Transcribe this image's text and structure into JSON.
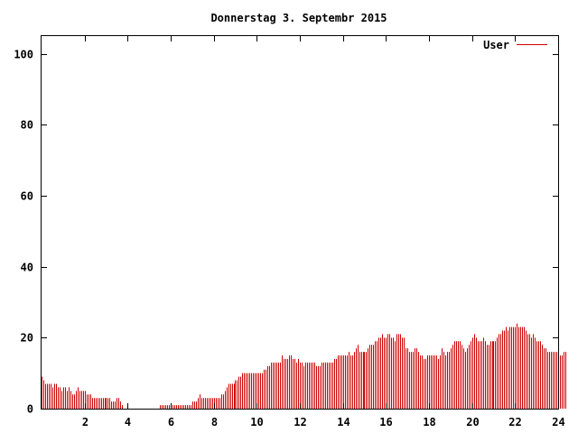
{
  "chart_data": {
    "type": "bar",
    "title": "Donnerstag 3. Septembr 2015",
    "xlabel": "",
    "ylabel": "",
    "xlim": [
      0,
      24
    ],
    "ylim": [
      0,
      105
    ],
    "x_ticks": [
      "2",
      "4",
      "6",
      "8",
      "10",
      "12",
      "14",
      "16",
      "18",
      "20",
      "22",
      "24"
    ],
    "y_ticks": [
      "0",
      "20",
      "40",
      "60",
      "80",
      "100"
    ],
    "x_tick_values": [
      2,
      4,
      6,
      8,
      10,
      12,
      14,
      16,
      18,
      20,
      22,
      24
    ],
    "y_tick_values": [
      0,
      20,
      40,
      60,
      80,
      100
    ],
    "grid": false,
    "legend_position": "top-right",
    "bar_color": "#cc0000",
    "series": [
      {
        "name": "User",
        "x_start": 0,
        "x_step": 0.0833333,
        "values": [
          9,
          8,
          7,
          7,
          7,
          7,
          6,
          7,
          7,
          6,
          6,
          5,
          6,
          6,
          5,
          6,
          5,
          4,
          4,
          5,
          6,
          5,
          5,
          5,
          5,
          4,
          4,
          4,
          3,
          3,
          3,
          3,
          3,
          3,
          3,
          3,
          3,
          3,
          3,
          2,
          2,
          2,
          3,
          3,
          2,
          1,
          0,
          0,
          1,
          0,
          0,
          0,
          0,
          0,
          0,
          0,
          0,
          0,
          0,
          0,
          0,
          0,
          0,
          0,
          0,
          0,
          1,
          1,
          1,
          1,
          1,
          1,
          1,
          1,
          1,
          1,
          1,
          1,
          1,
          1,
          1,
          1,
          1,
          1,
          2,
          2,
          2,
          3,
          4,
          3,
          3,
          3,
          3,
          3,
          3,
          3,
          3,
          3,
          3,
          3,
          4,
          4,
          5,
          6,
          7,
          7,
          7,
          7,
          8,
          8,
          9,
          9,
          10,
          10,
          10,
          10,
          10,
          10,
          10,
          10,
          10,
          10,
          10,
          10,
          11,
          11,
          12,
          12,
          13,
          13,
          13,
          13,
          13,
          13,
          15,
          14,
          14,
          14,
          15,
          15,
          14,
          14,
          13,
          14,
          13,
          13,
          12,
          13,
          13,
          13,
          13,
          13,
          13,
          12,
          12,
          12,
          13,
          13,
          13,
          13,
          13,
          13,
          13,
          14,
          14,
          15,
          15,
          15,
          15,
          15,
          15,
          16,
          15,
          15,
          16,
          17,
          18,
          16,
          16,
          16,
          16,
          16,
          17,
          18,
          18,
          18,
          19,
          19,
          20,
          20,
          21,
          20,
          20,
          21,
          21,
          20,
          20,
          19,
          21,
          21,
          21,
          20,
          20,
          17,
          17,
          16,
          16,
          16,
          17,
          17,
          16,
          15,
          15,
          14,
          14,
          15,
          15,
          15,
          15,
          15,
          15,
          14,
          15,
          17,
          16,
          15,
          16,
          16,
          17,
          18,
          19,
          19,
          19,
          19,
          18,
          17,
          16,
          17,
          18,
          19,
          20,
          21,
          20,
          19,
          19,
          19,
          20,
          19,
          18,
          18,
          19,
          19,
          19,
          19,
          20,
          21,
          21,
          22,
          22,
          23,
          22,
          23,
          23,
          23,
          23,
          24,
          23,
          23,
          23,
          23,
          22,
          21,
          21,
          20,
          21,
          20,
          19,
          19,
          19,
          18,
          17,
          17,
          16,
          16,
          16,
          16,
          16,
          16,
          16,
          15,
          15,
          16,
          16
        ]
      }
    ]
  }
}
